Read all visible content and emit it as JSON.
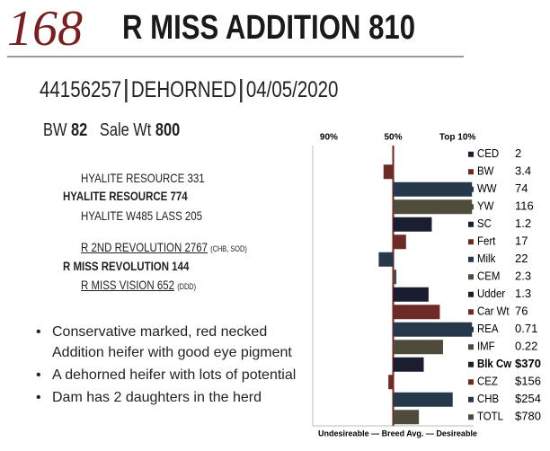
{
  "header": {
    "number": "168",
    "name": "R MISS ADDITION 810",
    "registration": "44156257",
    "status": "DEHORNED",
    "date": "04/05/2020"
  },
  "weights": {
    "bw_label": "BW",
    "bw": "82",
    "sale_label": "Sale Wt",
    "sale": "800"
  },
  "pedigree": {
    "sire_sire": "HYALITE RESOURCE 331",
    "sire": "HYALITE RESOURCE 774",
    "sire_dam": "HYALITE W485 LASS 205",
    "dam_sire": "R 2ND REVOLUTION 2767",
    "dam_sire_note": "(CHB, SOD)",
    "dam": "R MISS REVOLUTION 144",
    "dam_dam": "R MISS VISION 652",
    "dam_dam_note": "(DDD)"
  },
  "bullets": [
    "Conservative marked, red necked Addition heifer with good eye pigment",
    "A dehorned heifer with lots of potential",
    "Dam has 2 daughters in the herd"
  ],
  "chart_data": {
    "type": "bar",
    "orientation": "horizontal",
    "categories": [
      "CED",
      "BW",
      "WW",
      "YW",
      "SC",
      "Fert",
      "Milk",
      "CEM",
      "Udder",
      "Car Wt",
      "REA",
      "IMF",
      "Blk Cw",
      "CEZ",
      "CHB",
      "TOTL"
    ],
    "epds": [
      "2",
      "3.4",
      "74",
      "116",
      "1.2",
      "17",
      "22",
      "2.3",
      "1.3",
      "76",
      "0.71",
      "0.22",
      "$370",
      "$156",
      "$254",
      "$780"
    ],
    "bold": [
      false,
      false,
      false,
      false,
      false,
      false,
      false,
      false,
      false,
      false,
      false,
      false,
      true,
      false,
      false,
      false
    ],
    "colors": [
      "#1b1d30",
      "#6e2b25",
      "#26394b",
      "#4f4c3b",
      "#1b1d30",
      "#6e2b25",
      "#26394b",
      "#4f4c3b",
      "#1b1d30",
      "#6e2b25",
      "#26394b",
      "#4f4c3b",
      "#1b1d30",
      "#6e2b25",
      "#26394b",
      "#4f4c3b"
    ],
    "values": [
      50,
      56,
      1,
      1,
      26,
      42,
      59,
      48,
      28,
      21,
      1,
      19,
      31,
      53,
      13,
      34
    ],
    "xlim": [
      100,
      0
    ],
    "xticks": [
      {
        "value": 90,
        "label": "90%"
      },
      {
        "value": 50,
        "label": "50%"
      },
      {
        "value": 10,
        "label": "Top 10%"
      }
    ],
    "caption": "Undesireable — Breed Avg. — Desireable"
  }
}
